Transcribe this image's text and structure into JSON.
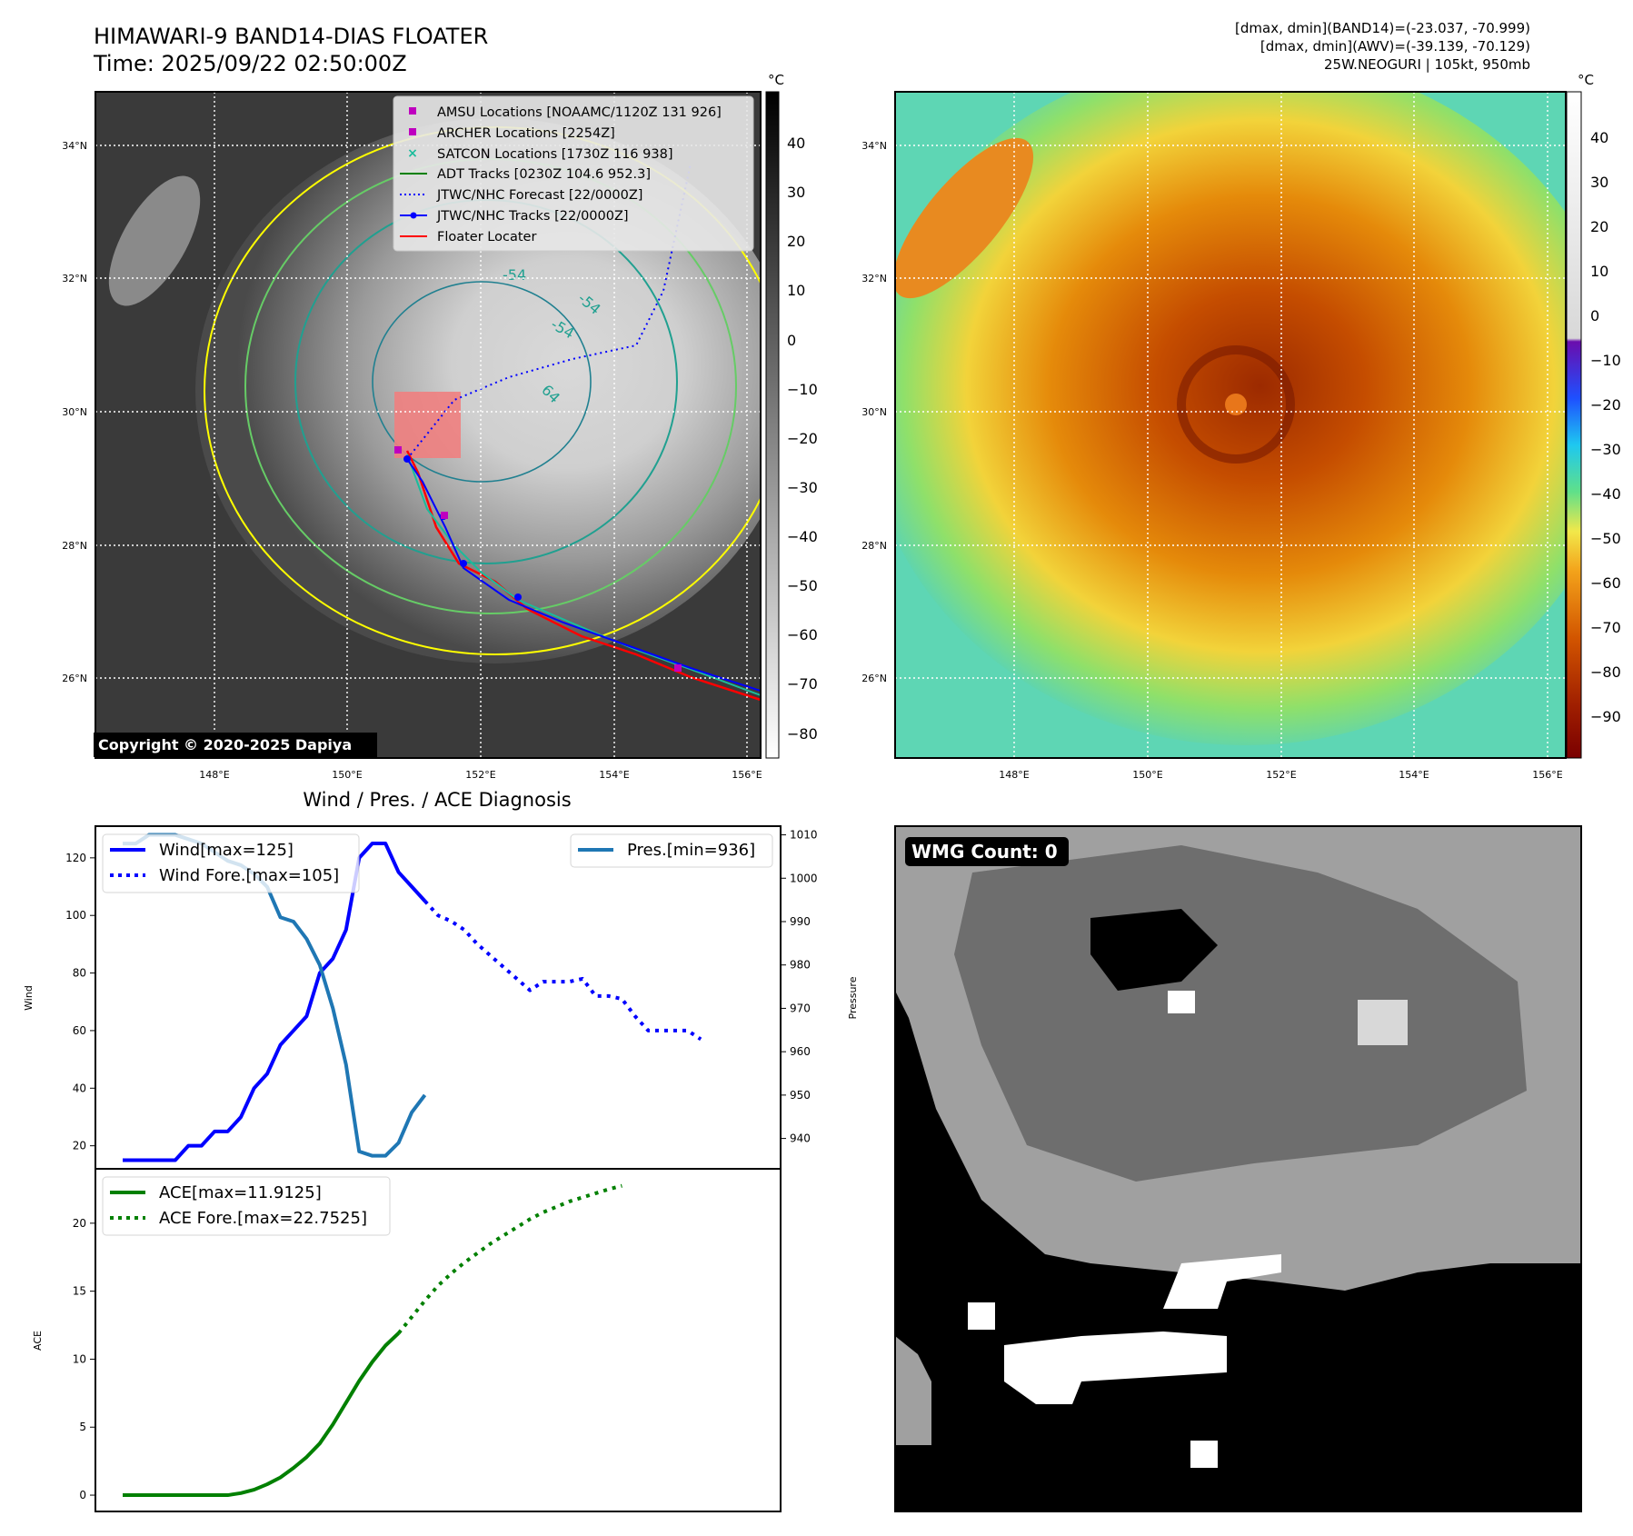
{
  "header": {
    "title_line1": "HIMAWARI-9 BAND14-DIAS FLOATER",
    "title_line2": "Time: 2025/09/22 02:50:00Z",
    "meta_line1": "[dmax, dmin](BAND14)=(-23.037, -70.999)",
    "meta_line2": "[dmax, dmin](AWV)=(-39.139, -70.129)",
    "meta_line3": "25W.NEOGURI | 105kt, 950mb"
  },
  "colors": {
    "wind": "#0000ff",
    "pressure": "#1f77b4",
    "ace": "#008000",
    "track_red": "#ff0000",
    "track_green": "#008000",
    "satcon": "#1abc9c",
    "amsu": "#bf00bf"
  },
  "ir_panel": {
    "copyright": "Copyright © 2020-2025 Dapiya",
    "colorbar_unit": "°C",
    "colorbar_ticks": [
      "40",
      "30",
      "20",
      "10",
      "0",
      "−10",
      "−20",
      "−30",
      "−40",
      "−50",
      "−60",
      "−70",
      "−80"
    ],
    "lat_labels": [
      "34°N",
      "32°N",
      "30°N",
      "28°N",
      "26°N"
    ],
    "lon_labels": [
      "148°E",
      "150°E",
      "152°E",
      "154°E",
      "156°E"
    ],
    "contour_labels": [
      "-54",
      "-54",
      "-54",
      "64"
    ],
    "legend": [
      {
        "label": "AMSU Locations [NOAAMC/1120Z 131 926]",
        "icon": "square-marker"
      },
      {
        "label": "ARCHER Locations [2254Z]",
        "icon": "square-marker"
      },
      {
        "label": "SATCON Locations [1730Z 116 938]",
        "icon": "x-marker"
      },
      {
        "label": "ADT Tracks [0230Z 104.6 952.3]",
        "icon": "line"
      },
      {
        "label": "JTWC/NHC Forecast [22/0000Z]",
        "icon": "dotted-line"
      },
      {
        "label": "JTWC/NHC Tracks [22/0000Z]",
        "icon": "line-dot"
      },
      {
        "label": "Floater Locater",
        "icon": "line"
      }
    ]
  },
  "awv_panel": {
    "colorbar_unit": "°C",
    "colorbar_ticks": [
      "40",
      "30",
      "20",
      "10",
      "0",
      "−10",
      "−20",
      "−30",
      "−40",
      "−50",
      "−60",
      "−70",
      "−80",
      "−90"
    ],
    "lat_labels": [
      "34°N",
      "32°N",
      "30°N",
      "28°N",
      "26°N"
    ],
    "lon_labels": [
      "148°E",
      "150°E",
      "152°E",
      "154°E",
      "156°E"
    ]
  },
  "wmg_panel": {
    "label": "WMG Count: 0"
  },
  "chart_data": [
    {
      "type": "line",
      "title": "Wind / Pres. / ACE Diagnosis",
      "ylabel": "Wind",
      "y2label": "Pressure",
      "ylim": [
        12,
        131
      ],
      "y2lim": [
        933,
        1012
      ],
      "yticks": [
        20,
        40,
        60,
        80,
        100,
        120
      ],
      "y2ticks": [
        940,
        950,
        960,
        970,
        980,
        990,
        1000,
        1010
      ],
      "x": [
        0,
        1,
        2,
        3,
        4,
        5,
        6,
        7,
        8,
        9,
        10,
        11,
        12,
        13,
        14,
        15,
        16,
        17,
        18,
        19,
        20,
        21,
        22,
        23,
        24,
        25,
        26,
        27,
        28,
        29,
        30,
        31,
        32,
        33,
        34,
        35,
        36,
        37,
        38,
        39,
        40,
        41,
        42,
        43,
        44,
        45,
        46
      ],
      "series": [
        {
          "name": "Wind[max=125]",
          "axis": "left",
          "style": "solid",
          "points": [
            [
              0,
              15
            ],
            [
              1,
              15
            ],
            [
              2,
              15
            ],
            [
              3,
              15
            ],
            [
              4,
              15
            ],
            [
              5,
              20
            ],
            [
              6,
              20
            ],
            [
              7,
              25
            ],
            [
              8,
              25
            ],
            [
              9,
              30
            ],
            [
              10,
              40
            ],
            [
              11,
              45
            ],
            [
              12,
              55
            ],
            [
              13,
              60
            ],
            [
              14,
              65
            ],
            [
              15,
              80
            ],
            [
              16,
              85
            ],
            [
              17,
              95
            ],
            [
              18,
              120
            ],
            [
              19,
              125
            ],
            [
              20,
              125
            ],
            [
              21,
              115
            ],
            [
              22,
              110
            ],
            [
              23,
              105
            ]
          ]
        },
        {
          "name": "Wind Fore.[max=105]",
          "axis": "left",
          "style": "dotted",
          "points": [
            [
              23,
              105
            ],
            [
              24,
              100
            ],
            [
              25,
              98
            ],
            [
              26,
              95
            ],
            [
              27,
              90
            ],
            [
              28,
              86
            ],
            [
              29,
              82
            ],
            [
              30,
              78
            ],
            [
              31,
              74
            ],
            [
              32,
              77
            ],
            [
              33,
              77
            ],
            [
              34,
              77
            ],
            [
              35,
              78
            ],
            [
              36,
              72
            ],
            [
              37,
              72
            ],
            [
              38,
              71
            ],
            [
              39,
              65
            ],
            [
              40,
              60
            ],
            [
              41,
              60
            ],
            [
              42,
              60
            ],
            [
              43,
              60
            ],
            [
              44,
              57
            ]
          ]
        },
        {
          "name": "Pres.[min=936]",
          "axis": "right",
          "style": "solid",
          "points": [
            [
              0,
              1008
            ],
            [
              1,
              1008
            ],
            [
              2,
              1010
            ],
            [
              3,
              1010
            ],
            [
              4,
              1010
            ],
            [
              5,
              1009
            ],
            [
              6,
              1008
            ],
            [
              7,
              1006
            ],
            [
              8,
              1004
            ],
            [
              9,
              1003
            ],
            [
              10,
              1001
            ],
            [
              11,
              998
            ],
            [
              12,
              991
            ],
            [
              13,
              990
            ],
            [
              14,
              986
            ],
            [
              15,
              980
            ],
            [
              16,
              970
            ],
            [
              17,
              957
            ],
            [
              18,
              937
            ],
            [
              19,
              936
            ],
            [
              20,
              936
            ],
            [
              21,
              939
            ],
            [
              22,
              946
            ],
            [
              23,
              950
            ]
          ]
        }
      ]
    },
    {
      "type": "line",
      "ylabel": "ACE",
      "ylim": [
        -1.2,
        24
      ],
      "yticks": [
        0,
        5,
        10,
        15,
        20
      ],
      "series": [
        {
          "name": "ACE[max=11.9125]",
          "style": "solid",
          "points": [
            [
              0,
              0
            ],
            [
              2,
              0
            ],
            [
              4,
              0
            ],
            [
              6,
              0
            ],
            [
              8,
              0
            ],
            [
              9,
              0.15
            ],
            [
              10,
              0.4
            ],
            [
              11,
              0.8
            ],
            [
              12,
              1.3
            ],
            [
              13,
              2
            ],
            [
              14,
              2.8
            ],
            [
              15,
              3.8
            ],
            [
              16,
              5.2
            ],
            [
              17,
              6.8
            ],
            [
              18,
              8.4
            ],
            [
              19,
              9.8
            ],
            [
              20,
              11.0
            ],
            [
              21,
              11.9125
            ]
          ]
        },
        {
          "name": "ACE Fore.[max=22.7525]",
          "style": "dotted",
          "points": [
            [
              21,
              11.9125
            ],
            [
              22,
              13.1
            ],
            [
              23,
              14.3
            ],
            [
              24,
              15.4
            ],
            [
              25,
              16.3
            ],
            [
              26,
              17.1
            ],
            [
              27,
              17.8
            ],
            [
              28,
              18.5
            ],
            [
              29,
              19.1
            ],
            [
              30,
              19.7
            ],
            [
              31,
              20.3
            ],
            [
              32,
              20.8
            ],
            [
              33,
              21.2
            ],
            [
              34,
              21.6
            ],
            [
              35,
              21.9
            ],
            [
              36,
              22.2
            ],
            [
              37,
              22.5
            ],
            [
              38,
              22.7525
            ]
          ]
        }
      ]
    }
  ]
}
